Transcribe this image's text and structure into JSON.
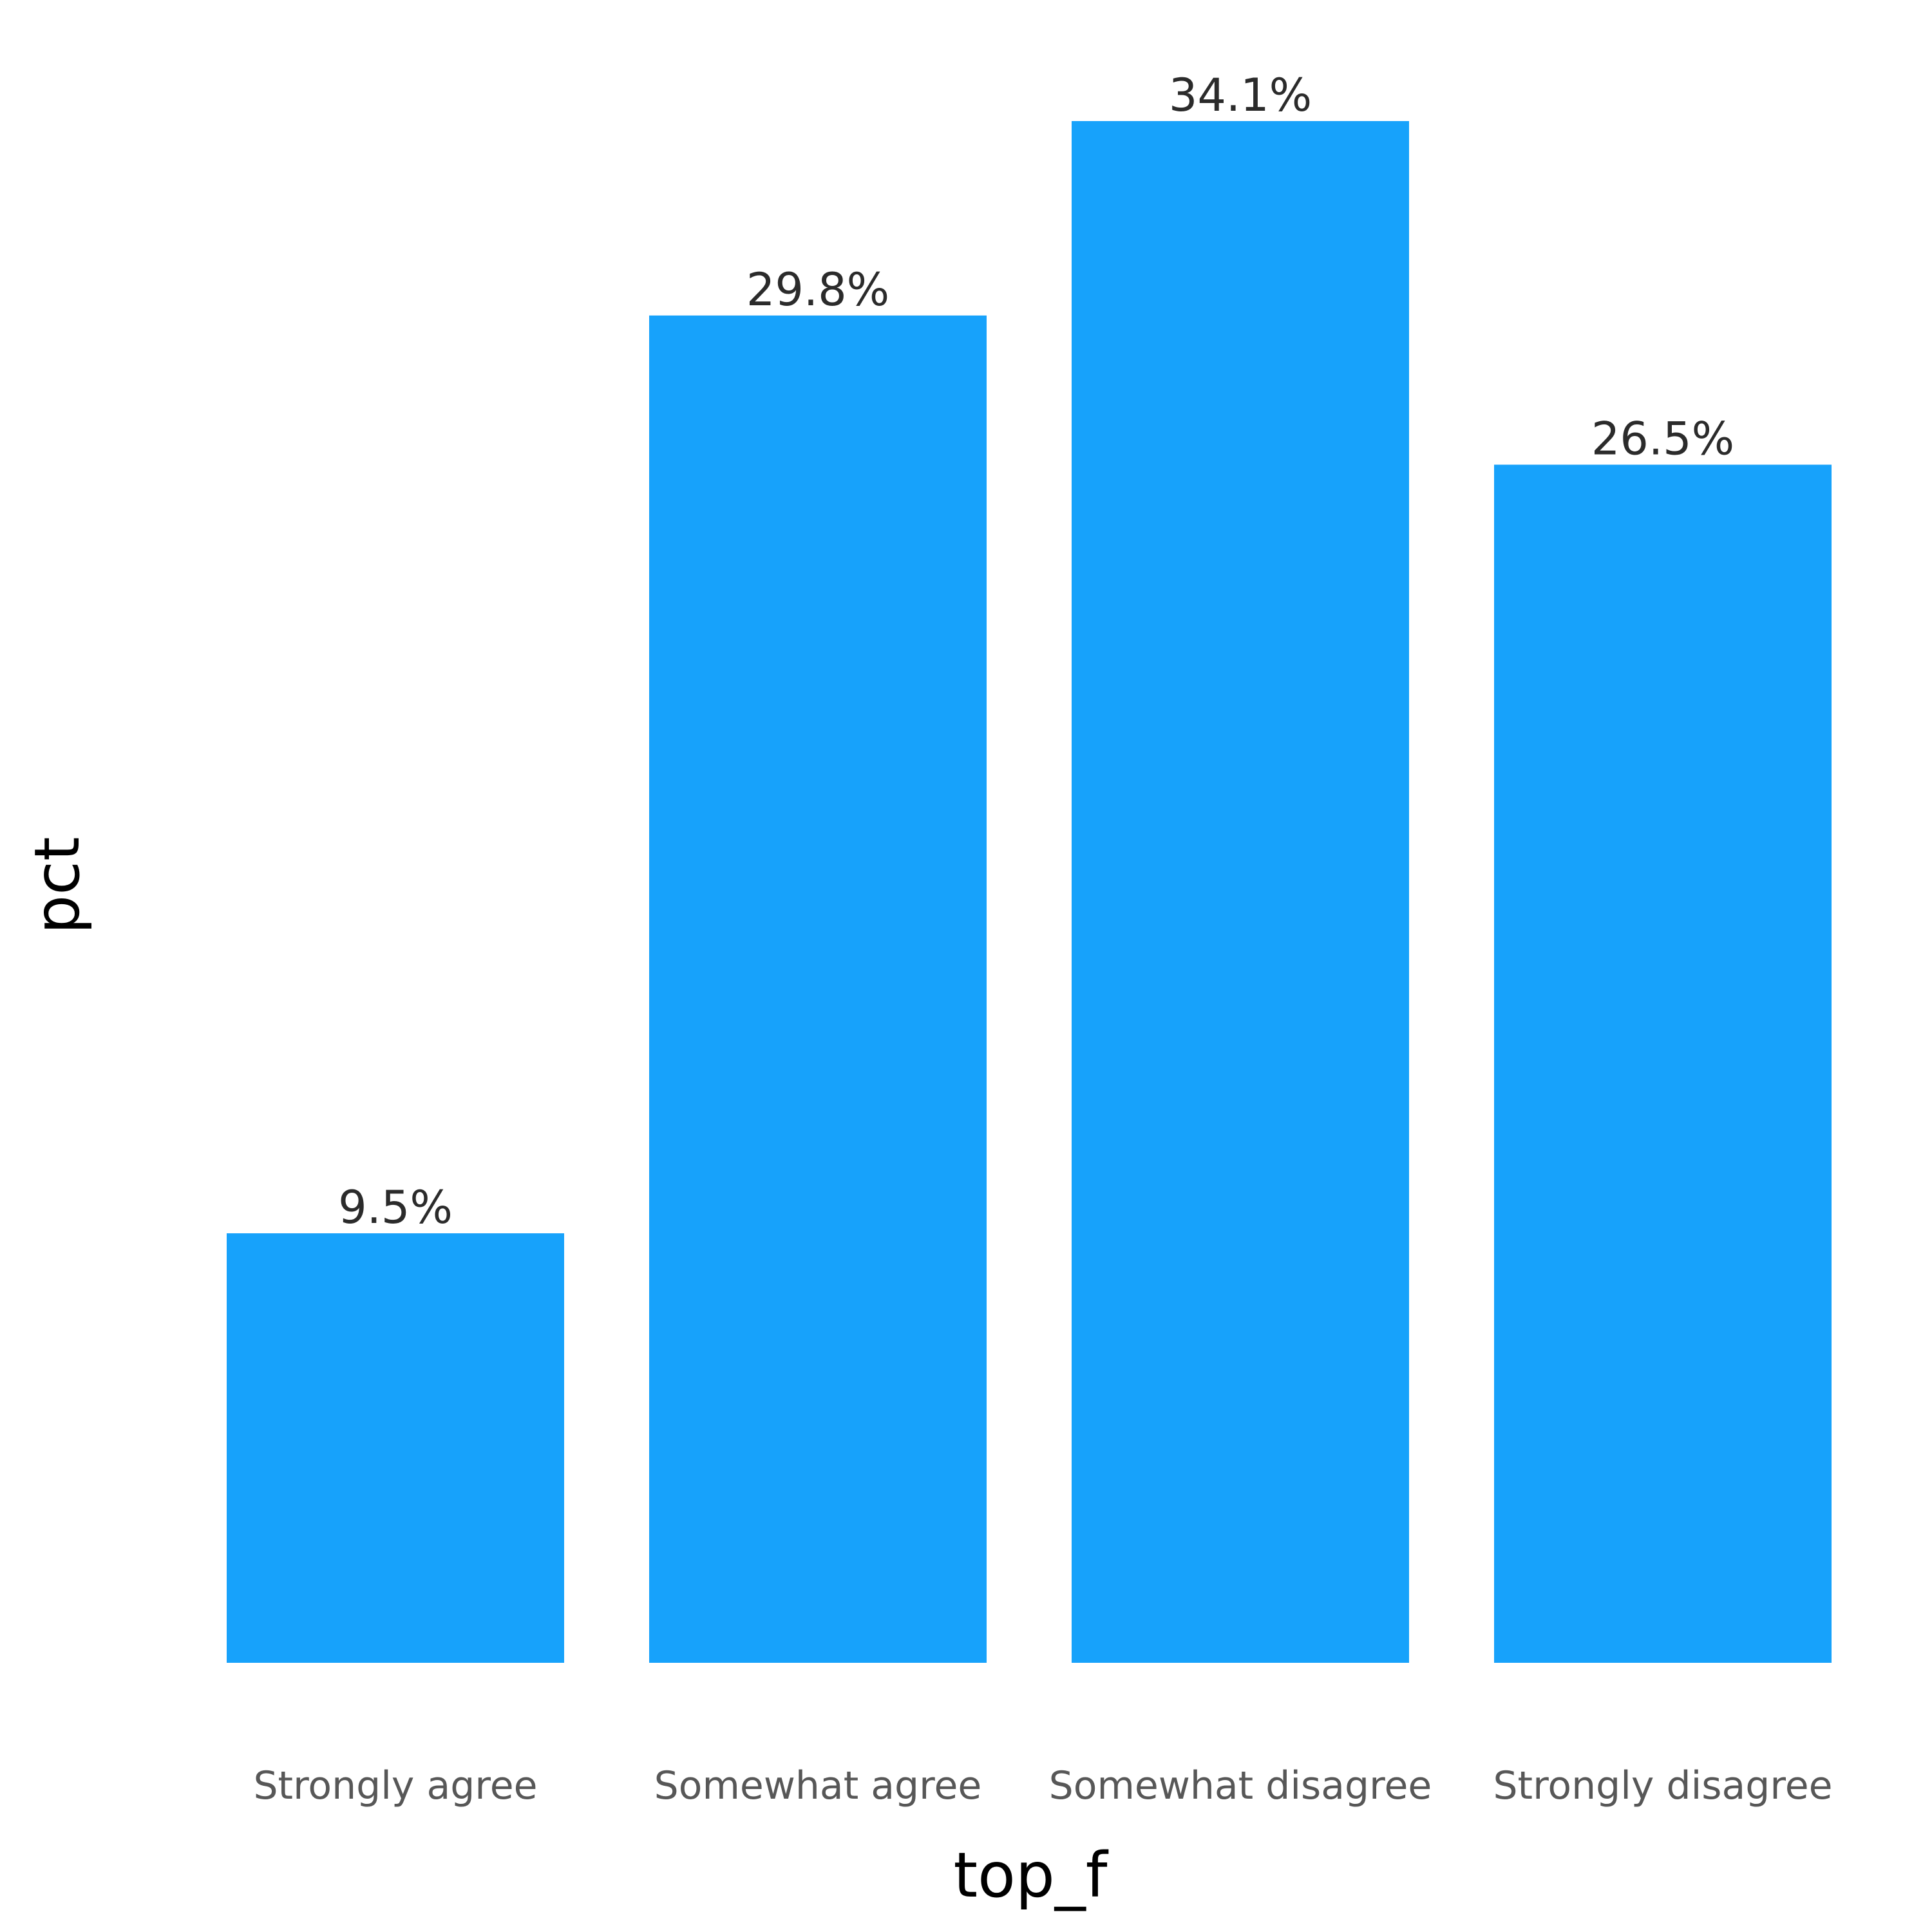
{
  "chart_data": {
    "type": "bar",
    "categories": [
      "Strongly agree",
      "Somewhat agree",
      "Somewhat disagree",
      "Strongly disagree"
    ],
    "values": [
      9.5,
      29.8,
      34.1,
      26.5
    ],
    "data_labels": [
      "9.5%",
      "29.8%",
      "34.1%",
      "26.5%"
    ],
    "xlabel": "top_f",
    "ylabel": "pct",
    "ylim": [
      0,
      34.1
    ],
    "grid": false,
    "bar_color": "#17a2fb"
  }
}
